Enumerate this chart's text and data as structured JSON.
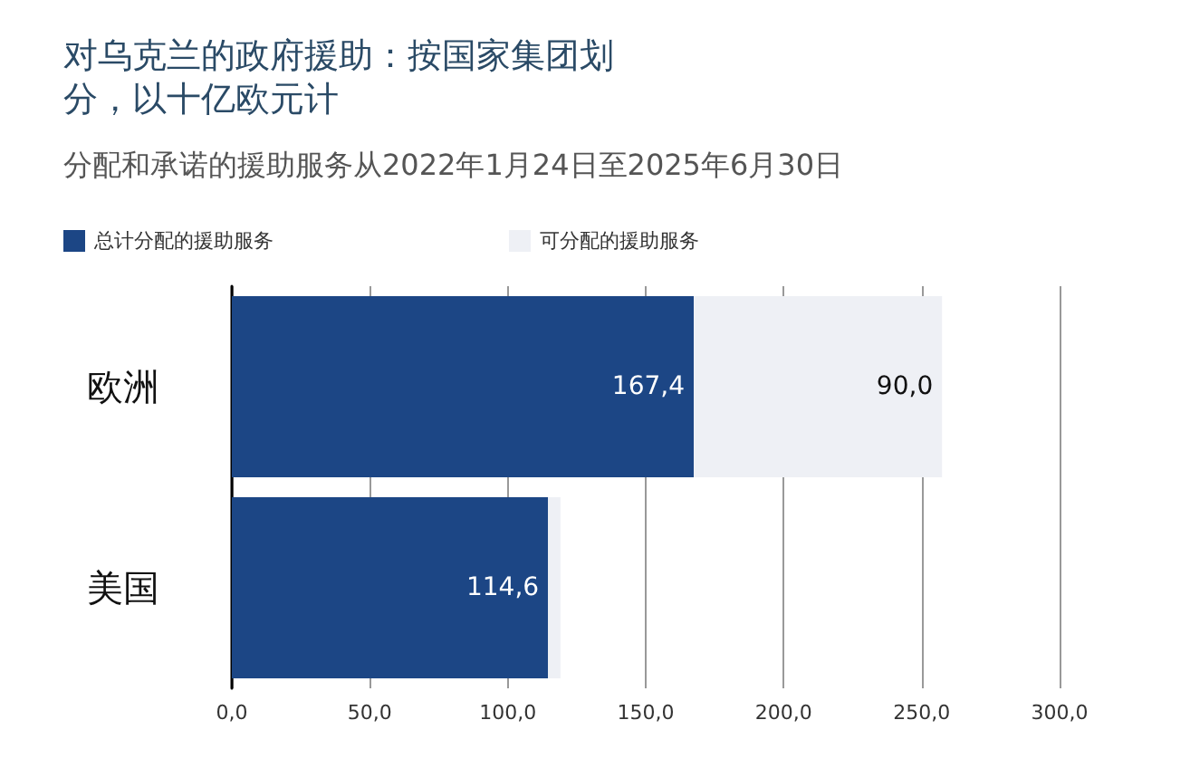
{
  "chart_data": {
    "type": "bar",
    "orientation": "horizontal",
    "stacked": true,
    "title": "对乌克兰的政府援助：按国家集团划分，以十亿欧元计",
    "subtitle": "分配和承诺的援助服务从2022年1月24日至2025年6月30日",
    "categories": [
      "欧洲",
      "美国"
    ],
    "series": [
      {
        "name": "总计分配的援助服务",
        "color": "#1c4685",
        "values": [
          167.4,
          114.6
        ],
        "value_labels": [
          "167,4",
          "114,6"
        ]
      },
      {
        "name": "可分配的援助服务",
        "color": "#eef0f5",
        "values": [
          90.0,
          4.5
        ],
        "value_labels": [
          "90,0",
          null
        ]
      }
    ],
    "xlim": [
      0,
      300
    ],
    "xticks": [
      {
        "value": 0,
        "label": "0,0"
      },
      {
        "value": 50,
        "label": "50,0"
      },
      {
        "value": 100,
        "label": "100,0"
      },
      {
        "value": 150,
        "label": "150,0"
      },
      {
        "value": 200,
        "label": "200,0"
      },
      {
        "value": 250,
        "label": "250,0"
      },
      {
        "value": 300,
        "label": "300,0"
      }
    ],
    "grid": "x",
    "legend": "top left"
  }
}
